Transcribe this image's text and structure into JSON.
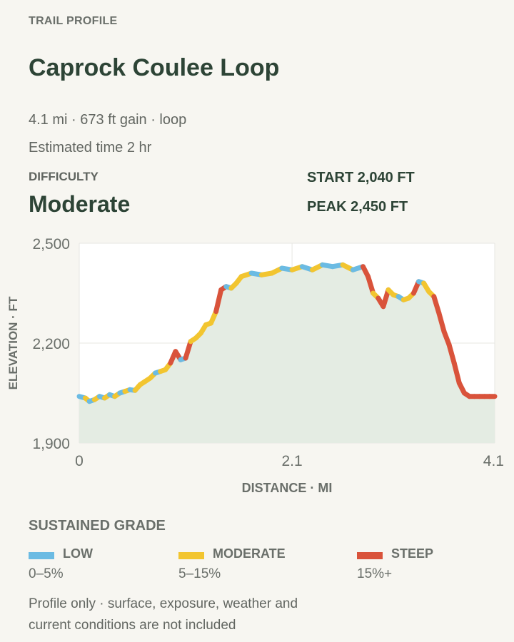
{
  "header": {
    "eyebrow": "TRAIL PROFILE",
    "title": "Caprock Coulee Loop",
    "meta_line1": "4.1 mi · 673 ft gain · loop",
    "meta_line2": "Estimated time 2 hr"
  },
  "difficulty": {
    "label": "DIFFICULTY",
    "value": "Moderate"
  },
  "stats": {
    "start": "START 2,040 FT",
    "peak": "PEAK 2,450 FT"
  },
  "legend": {
    "title": "SUSTAINED GRADE",
    "items": [
      {
        "name": "LOW",
        "range": "0–5%",
        "color": "#6bbbe3"
      },
      {
        "name": "MODERATE",
        "range": "5–15%",
        "color": "#f2c530"
      },
      {
        "name": "STEEP",
        "range": "15%+",
        "color": "#d9533b"
      }
    ]
  },
  "footnote": "Profile only · surface, exposure, weather and current conditions are not included",
  "chart_data": {
    "type": "area",
    "xlabel": "DISTANCE · MI",
    "ylabel": "ELEVATION · FT",
    "xlim": [
      0,
      4.1
    ],
    "ylim": [
      1900,
      2500
    ],
    "x_ticks": [
      0,
      2.1,
      4.1
    ],
    "x_tick_labels": [
      "0",
      "2.1",
      "4.1"
    ],
    "y_ticks": [
      1900,
      2200,
      2500
    ],
    "y_tick_labels": [
      "1,900",
      "2,200",
      "2,500"
    ],
    "grid": true,
    "colors": {
      "low": "#6bbbe3",
      "moderate": "#f2c530",
      "steep": "#d9533b",
      "fill": "#e4ece3",
      "plot_bg": "#ffffff",
      "grid": "#e7e7e2"
    },
    "x": [
      0,
      0.06,
      0.1,
      0.15,
      0.2,
      0.25,
      0.3,
      0.35,
      0.4,
      0.45,
      0.5,
      0.55,
      0.6,
      0.65,
      0.7,
      0.75,
      0.8,
      0.85,
      0.9,
      0.95,
      1.0,
      1.05,
      1.1,
      1.15,
      1.2,
      1.25,
      1.3,
      1.35,
      1.4,
      1.45,
      1.5,
      1.55,
      1.6,
      1.7,
      1.8,
      1.9,
      2.0,
      2.1,
      2.2,
      2.3,
      2.4,
      2.5,
      2.6,
      2.7,
      2.8,
      2.85,
      2.9,
      2.95,
      3.0,
      3.05,
      3.1,
      3.15,
      3.2,
      3.25,
      3.3,
      3.35,
      3.4,
      3.45,
      3.5,
      3.55,
      3.6,
      3.65,
      3.7,
      3.75,
      3.8,
      3.85,
      3.9,
      3.95,
      4.0,
      4.05,
      4.1
    ],
    "y": [
      2040,
      2035,
      2025,
      2030,
      2040,
      2035,
      2045,
      2040,
      2050,
      2055,
      2060,
      2058,
      2075,
      2085,
      2095,
      2110,
      2115,
      2120,
      2140,
      2175,
      2150,
      2155,
      2205,
      2215,
      2230,
      2255,
      2260,
      2295,
      2360,
      2370,
      2365,
      2380,
      2400,
      2410,
      2405,
      2410,
      2425,
      2420,
      2430,
      2420,
      2435,
      2430,
      2435,
      2420,
      2430,
      2400,
      2350,
      2335,
      2310,
      2360,
      2345,
      2340,
      2330,
      2335,
      2350,
      2385,
      2380,
      2355,
      2340,
      2290,
      2235,
      2195,
      2140,
      2080,
      2050,
      2040,
      2040,
      2040,
      2040,
      2040,
      2040
    ],
    "segment_grades": [
      "low",
      "moderate",
      "low",
      "moderate",
      "low",
      "moderate",
      "low",
      "moderate",
      "low",
      "moderate",
      "low",
      "moderate",
      "moderate",
      "moderate",
      "moderate",
      "low",
      "moderate",
      "moderate",
      "steep",
      "steep",
      "low",
      "steep",
      "moderate",
      "moderate",
      "moderate",
      "moderate",
      "moderate",
      "steep",
      "steep",
      "low",
      "moderate",
      "moderate",
      "moderate",
      "low",
      "moderate",
      "moderate",
      "low",
      "moderate",
      "low",
      "moderate",
      "low",
      "low",
      "moderate",
      "low",
      "steep",
      "steep",
      "moderate",
      "steep",
      "steep",
      "moderate",
      "moderate",
      "low",
      "moderate",
      "moderate",
      "steep",
      "low",
      "moderate",
      "moderate",
      "steep",
      "steep",
      "steep",
      "steep",
      "steep",
      "steep",
      "steep",
      "steep",
      "steep",
      "steep",
      "steep",
      "steep"
    ]
  }
}
